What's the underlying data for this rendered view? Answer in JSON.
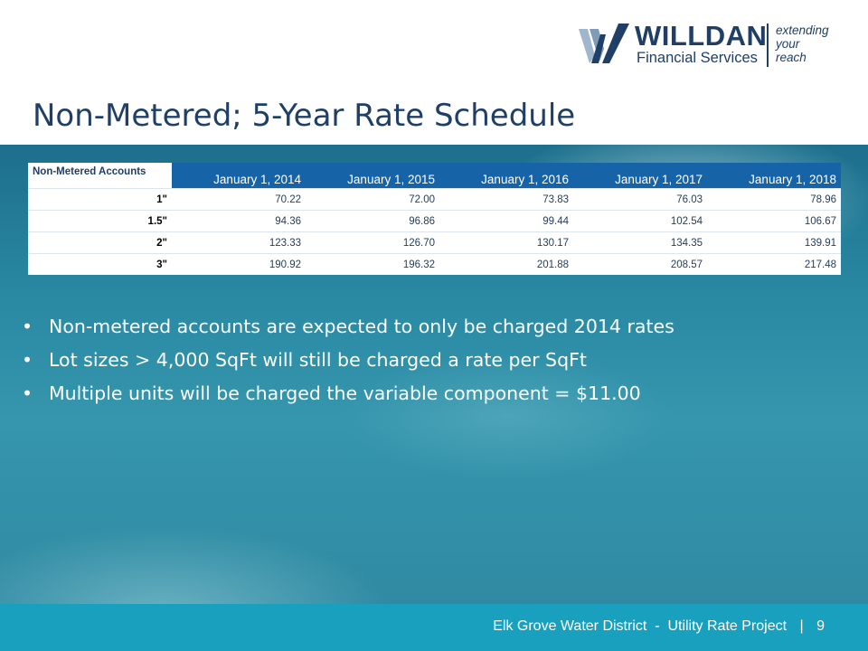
{
  "logo": {
    "name": "WILLDAN",
    "subtitle": "Financial Services",
    "tagline": [
      "extending",
      "your",
      "reach"
    ]
  },
  "title": "Non-Metered; 5-Year Rate Schedule",
  "table": {
    "corner_label": "Non-Metered Accounts",
    "columns": [
      "January 1, 2014",
      "January 1, 2015",
      "January 1, 2016",
      "January 1, 2017",
      "January 1, 2018"
    ],
    "rows": [
      {
        "size": "1\"",
        "values": [
          "70.22",
          "72.00",
          "73.83",
          "76.03",
          "78.96"
        ]
      },
      {
        "size": "1.5\"",
        "values": [
          "94.36",
          "96.86",
          "99.44",
          "102.54",
          "106.67"
        ]
      },
      {
        "size": "2\"",
        "values": [
          "123.33",
          "126.70",
          "130.17",
          "134.35",
          "139.91"
        ]
      },
      {
        "size": "3\"",
        "values": [
          "190.92",
          "196.32",
          "201.88",
          "208.57",
          "217.48"
        ]
      }
    ]
  },
  "bullets": [
    "Non-metered accounts are expected to only be charged 2014 rates",
    "Lot sizes > 4,000 SqFt will still be charged a rate per SqFt",
    "Multiple units will be charged the variable component = $11.00"
  ],
  "bullet_glyph": "•",
  "footer": {
    "text": "Elk Grove Water District  -  Utility Rate Project",
    "separator": "|",
    "page_number": "9"
  },
  "colors": {
    "title": "#1f3f66",
    "table_header": "#1763a8",
    "footer_bar": "#1aa0bf",
    "logo_light": "#9fb6cc",
    "logo_dark": "#1f3f66"
  }
}
